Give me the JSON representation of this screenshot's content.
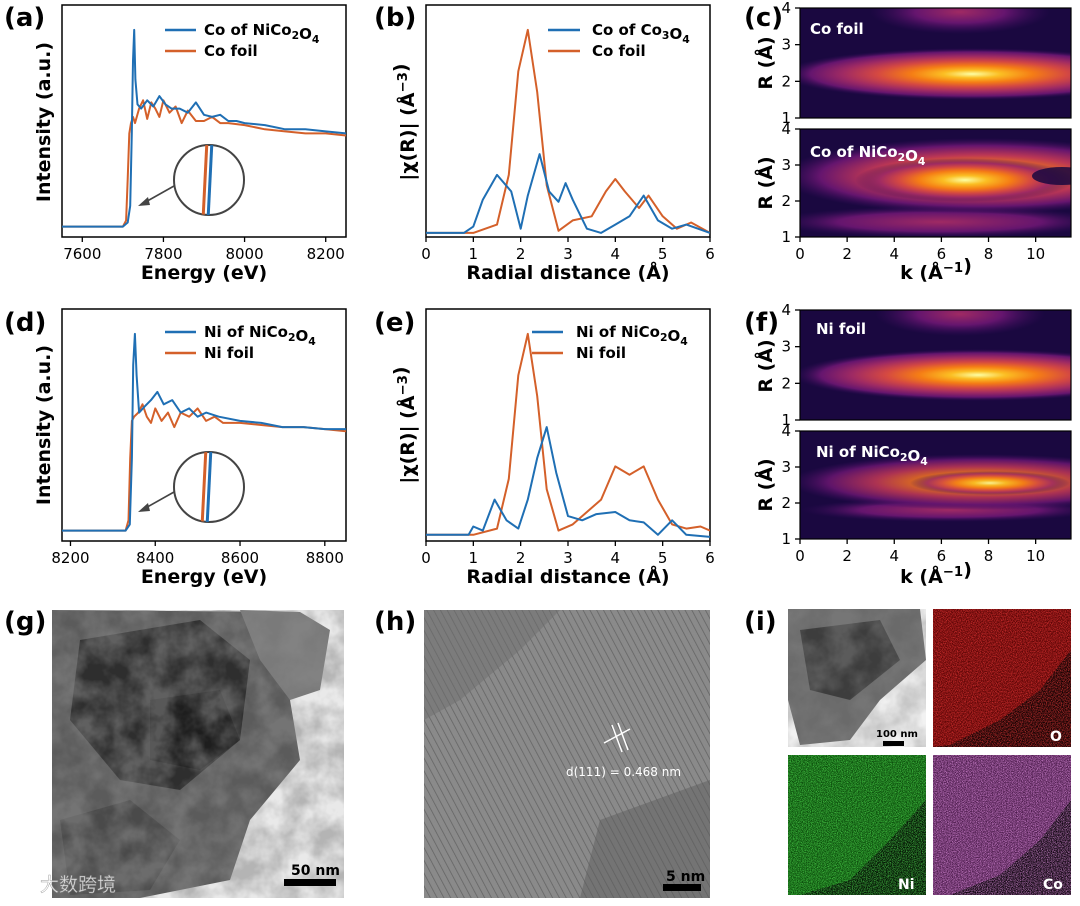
{
  "panels": {
    "a": {
      "label": "(a)",
      "legend": [
        "Co of NiCo2O4",
        "Co foil"
      ],
      "xlabel": "Energy (eV)",
      "ylabel": "Intensity (a.u.)"
    },
    "b": {
      "label": "(b)",
      "legend": [
        "Co of Co3O4",
        "Co foil"
      ],
      "xlabel": "Radial distance (Å)",
      "ylabel": "|χ(R)| (Å⁻³)"
    },
    "c": {
      "label": "(c)",
      "top_title": "Co foil",
      "bottom_title": "Co of NiCo2O4",
      "xlabel": "k (Å⁻¹)",
      "ylabel": "R (Å)"
    },
    "d": {
      "label": "(d)",
      "legend": [
        "Ni of NiCo2O4",
        "Ni foil"
      ],
      "xlabel": "Energy (eV)",
      "ylabel": "Intensity (a.u.)"
    },
    "e": {
      "label": "(e)",
      "legend": [
        "Ni of NiCo2O4",
        "Ni foil"
      ],
      "xlabel": "Radial distance (Å)",
      "ylabel": "|χ(R)| (Å⁻³)"
    },
    "f": {
      "label": "(f)",
      "top_title": "Ni foil",
      "bottom_title": "Ni of NiCo2O4",
      "xlabel": "k (Å⁻¹)",
      "ylabel": "R (Å)"
    },
    "g": {
      "label": "(g)",
      "scale": "50 nm"
    },
    "h": {
      "label": "(h)",
      "scale": "5 nm",
      "annotation": "d(111) = 0.468 nm"
    },
    "i": {
      "label": "(i)",
      "scale": "100 nm",
      "maps": [
        "O",
        "Ni",
        "Co"
      ]
    }
  },
  "watermark": "大数跨境",
  "colors": {
    "blue": "#1f6fb4",
    "orange": "#d4602a"
  },
  "chart_data": [
    {
      "id": "a",
      "type": "line",
      "title": "",
      "xlabel": "Energy (eV)",
      "ylabel": "Intensity (a.u.)",
      "xlim": [
        7550,
        8250
      ],
      "xticks": [
        7600,
        7800,
        8000,
        8200
      ],
      "series": [
        {
          "name": "Co of NiCo2O4",
          "x": [
            7550,
            7700,
            7712,
            7718,
            7722,
            7725,
            7728,
            7731,
            7736,
            7745,
            7760,
            7775,
            7790,
            7805,
            7820,
            7840,
            7860,
            7880,
            7900,
            7920,
            7940,
            7960,
            7980,
            8000,
            8050,
            8100,
            8150,
            8200,
            8250
          ],
          "y": [
            0.05,
            0.05,
            0.07,
            0.15,
            0.5,
            0.85,
            1.0,
            0.76,
            0.64,
            0.62,
            0.66,
            0.63,
            0.68,
            0.64,
            0.62,
            0.62,
            0.6,
            0.65,
            0.59,
            0.58,
            0.59,
            0.56,
            0.56,
            0.55,
            0.54,
            0.52,
            0.52,
            0.51,
            0.5
          ]
        },
        {
          "name": "Co foil",
          "x": [
            7550,
            7700,
            7708,
            7712,
            7716,
            7720,
            7725,
            7730,
            7740,
            7750,
            7760,
            7770,
            7780,
            7790,
            7800,
            7815,
            7830,
            7845,
            7860,
            7880,
            7900,
            7920,
            7940,
            7960,
            8000,
            8050,
            8100,
            8150,
            8200,
            8250
          ],
          "y": [
            0.05,
            0.05,
            0.08,
            0.28,
            0.5,
            0.55,
            0.58,
            0.55,
            0.62,
            0.66,
            0.57,
            0.65,
            0.62,
            0.58,
            0.66,
            0.6,
            0.63,
            0.55,
            0.61,
            0.56,
            0.56,
            0.58,
            0.55,
            0.55,
            0.54,
            0.52,
            0.51,
            0.5,
            0.5,
            0.49
          ]
        }
      ]
    },
    {
      "id": "b",
      "type": "line",
      "title": "",
      "xlabel": "Radial distance (Å)",
      "ylabel": "|χ(R)| (Å⁻³)",
      "xlim": [
        0,
        6
      ],
      "xticks": [
        0,
        1,
        2,
        3,
        4,
        5,
        6
      ],
      "series": [
        {
          "name": "Co of Co3O4",
          "x": [
            0,
            0.8,
            1.0,
            1.2,
            1.5,
            1.8,
            2.0,
            2.15,
            2.4,
            2.6,
            2.8,
            2.95,
            3.1,
            3.4,
            3.7,
            4.0,
            4.3,
            4.6,
            4.9,
            5.2,
            5.5,
            6.0
          ],
          "y": [
            0.02,
            0.02,
            0.05,
            0.18,
            0.3,
            0.22,
            0.04,
            0.2,
            0.4,
            0.22,
            0.17,
            0.26,
            0.18,
            0.04,
            0.02,
            0.06,
            0.1,
            0.2,
            0.08,
            0.04,
            0.06,
            0.02
          ]
        },
        {
          "name": "Co foil",
          "x": [
            0,
            1.0,
            1.5,
            1.75,
            1.95,
            2.15,
            2.35,
            2.55,
            2.8,
            3.1,
            3.5,
            3.8,
            4.0,
            4.2,
            4.5,
            4.7,
            5.0,
            5.3,
            5.6,
            6.0
          ],
          "y": [
            0.02,
            0.02,
            0.06,
            0.3,
            0.8,
            1.0,
            0.7,
            0.25,
            0.03,
            0.08,
            0.1,
            0.22,
            0.28,
            0.22,
            0.14,
            0.2,
            0.1,
            0.04,
            0.07,
            0.02
          ]
        }
      ]
    },
    {
      "id": "c",
      "type": "heatmap",
      "title": "Co foil / Co of NiCo2O4",
      "xlabel": "k (Å⁻¹)",
      "ylabel": "R (Å)",
      "xlim": [
        0,
        11.5
      ],
      "ylim": [
        1,
        4
      ],
      "xticks": [
        0,
        2,
        4,
        6,
        8,
        10
      ],
      "yticks": [
        1,
        2,
        3,
        4
      ],
      "maxima": [
        {
          "panel": "Co foil",
          "k": 8,
          "R": 2.2
        },
        {
          "panel": "Co of NiCo2O4",
          "k": 7,
          "R": 2.6
        }
      ]
    },
    {
      "id": "d",
      "type": "line",
      "title": "",
      "xlabel": "Energy (eV)",
      "ylabel": "Intensity (a.u.)",
      "xlim": [
        8180,
        8850
      ],
      "xticks": [
        8200,
        8400,
        8600,
        8800
      ],
      "series": [
        {
          "name": "Ni of NiCo2O4",
          "x": [
            8180,
            8330,
            8340,
            8345,
            8348,
            8352,
            8356,
            8362,
            8375,
            8390,
            8405,
            8420,
            8440,
            8460,
            8480,
            8500,
            8520,
            8550,
            8600,
            8650,
            8700,
            8750,
            8800,
            8850
          ],
          "y": [
            0.05,
            0.05,
            0.08,
            0.4,
            0.85,
            1.0,
            0.8,
            0.62,
            0.65,
            0.68,
            0.72,
            0.66,
            0.68,
            0.62,
            0.64,
            0.6,
            0.62,
            0.6,
            0.58,
            0.57,
            0.55,
            0.55,
            0.54,
            0.54
          ]
        },
        {
          "name": "Ni foil",
          "x": [
            8180,
            8330,
            8337,
            8341,
            8345,
            8350,
            8360,
            8370,
            8380,
            8390,
            8400,
            8415,
            8430,
            8445,
            8460,
            8480,
            8500,
            8520,
            8540,
            8560,
            8600,
            8650,
            8700,
            8750,
            8800,
            8850
          ],
          "y": [
            0.05,
            0.05,
            0.1,
            0.4,
            0.58,
            0.6,
            0.62,
            0.66,
            0.6,
            0.57,
            0.64,
            0.58,
            0.62,
            0.55,
            0.62,
            0.6,
            0.64,
            0.58,
            0.6,
            0.57,
            0.57,
            0.56,
            0.55,
            0.55,
            0.54,
            0.53
          ]
        }
      ]
    },
    {
      "id": "e",
      "type": "line",
      "title": "",
      "xlabel": "Radial distance (Å)",
      "ylabel": "|χ(R)| (Å⁻³)",
      "xlim": [
        0,
        6
      ],
      "xticks": [
        0,
        1,
        2,
        3,
        4,
        5,
        6
      ],
      "series": [
        {
          "name": "Ni of NiCo2O4",
          "x": [
            0,
            0.9,
            1.0,
            1.2,
            1.45,
            1.7,
            1.95,
            2.15,
            2.35,
            2.55,
            2.75,
            3.0,
            3.3,
            3.6,
            4.0,
            4.3,
            4.6,
            4.9,
            5.2,
            5.5,
            6.0
          ],
          "y": [
            0.03,
            0.03,
            0.07,
            0.05,
            0.2,
            0.1,
            0.06,
            0.2,
            0.4,
            0.55,
            0.33,
            0.12,
            0.1,
            0.13,
            0.14,
            0.1,
            0.09,
            0.03,
            0.1,
            0.03,
            0.02
          ]
        },
        {
          "name": "Ni foil",
          "x": [
            0,
            1.0,
            1.5,
            1.75,
            1.95,
            2.15,
            2.35,
            2.55,
            2.8,
            3.1,
            3.4,
            3.7,
            4.0,
            4.3,
            4.6,
            4.9,
            5.2,
            5.5,
            5.8,
            6.0
          ],
          "y": [
            0.03,
            0.03,
            0.06,
            0.3,
            0.8,
            1.0,
            0.7,
            0.25,
            0.05,
            0.08,
            0.14,
            0.2,
            0.36,
            0.32,
            0.36,
            0.2,
            0.08,
            0.06,
            0.07,
            0.05
          ]
        }
      ]
    },
    {
      "id": "f",
      "type": "heatmap",
      "title": "Ni foil / Ni of NiCo2O4",
      "xlabel": "k (Å⁻¹)",
      "ylabel": "R (Å)",
      "xlim": [
        0,
        11.5
      ],
      "ylim": [
        1,
        4
      ],
      "xticks": [
        0,
        2,
        4,
        6,
        8,
        10
      ],
      "yticks": [
        1,
        2,
        3,
        4
      ],
      "maxima": [
        {
          "panel": "Ni foil",
          "k": 8,
          "R": 2.2
        },
        {
          "panel": "Ni of NiCo2O4",
          "k": 7.5,
          "R": 2.5
        }
      ]
    }
  ]
}
